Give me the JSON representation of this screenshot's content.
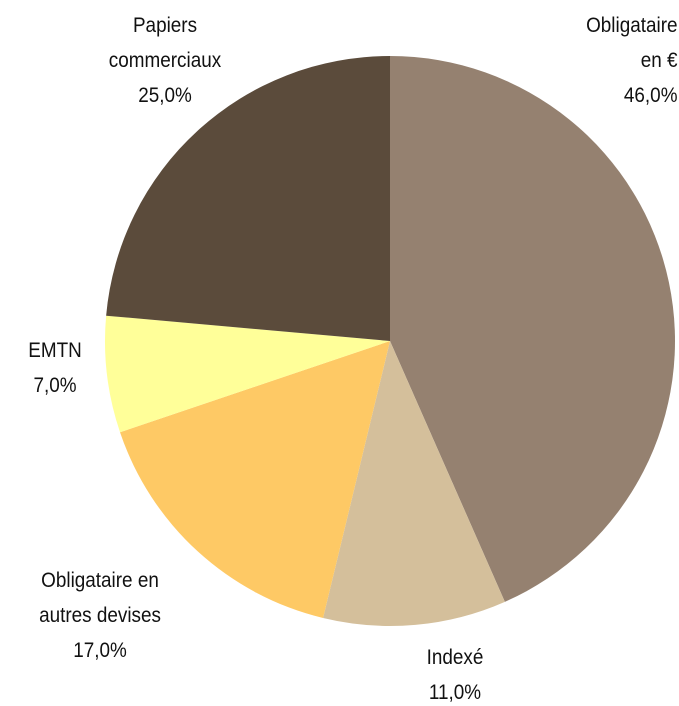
{
  "chart_data": {
    "type": "pie",
    "categories": [
      "Obligataire en €",
      "Indexé",
      "Obligataire en autres devises",
      "EMTN",
      "Papiers commerciaux"
    ],
    "values": [
      46,
      11,
      17,
      7,
      25
    ],
    "value_labels": [
      "46,0%",
      "11,0%",
      "17,0%",
      "7,0%",
      "25,0%"
    ],
    "colors": [
      "#958170",
      "#d4bf9b",
      "#fec965",
      "#ffff99",
      "#5b4b3b"
    ]
  }
}
